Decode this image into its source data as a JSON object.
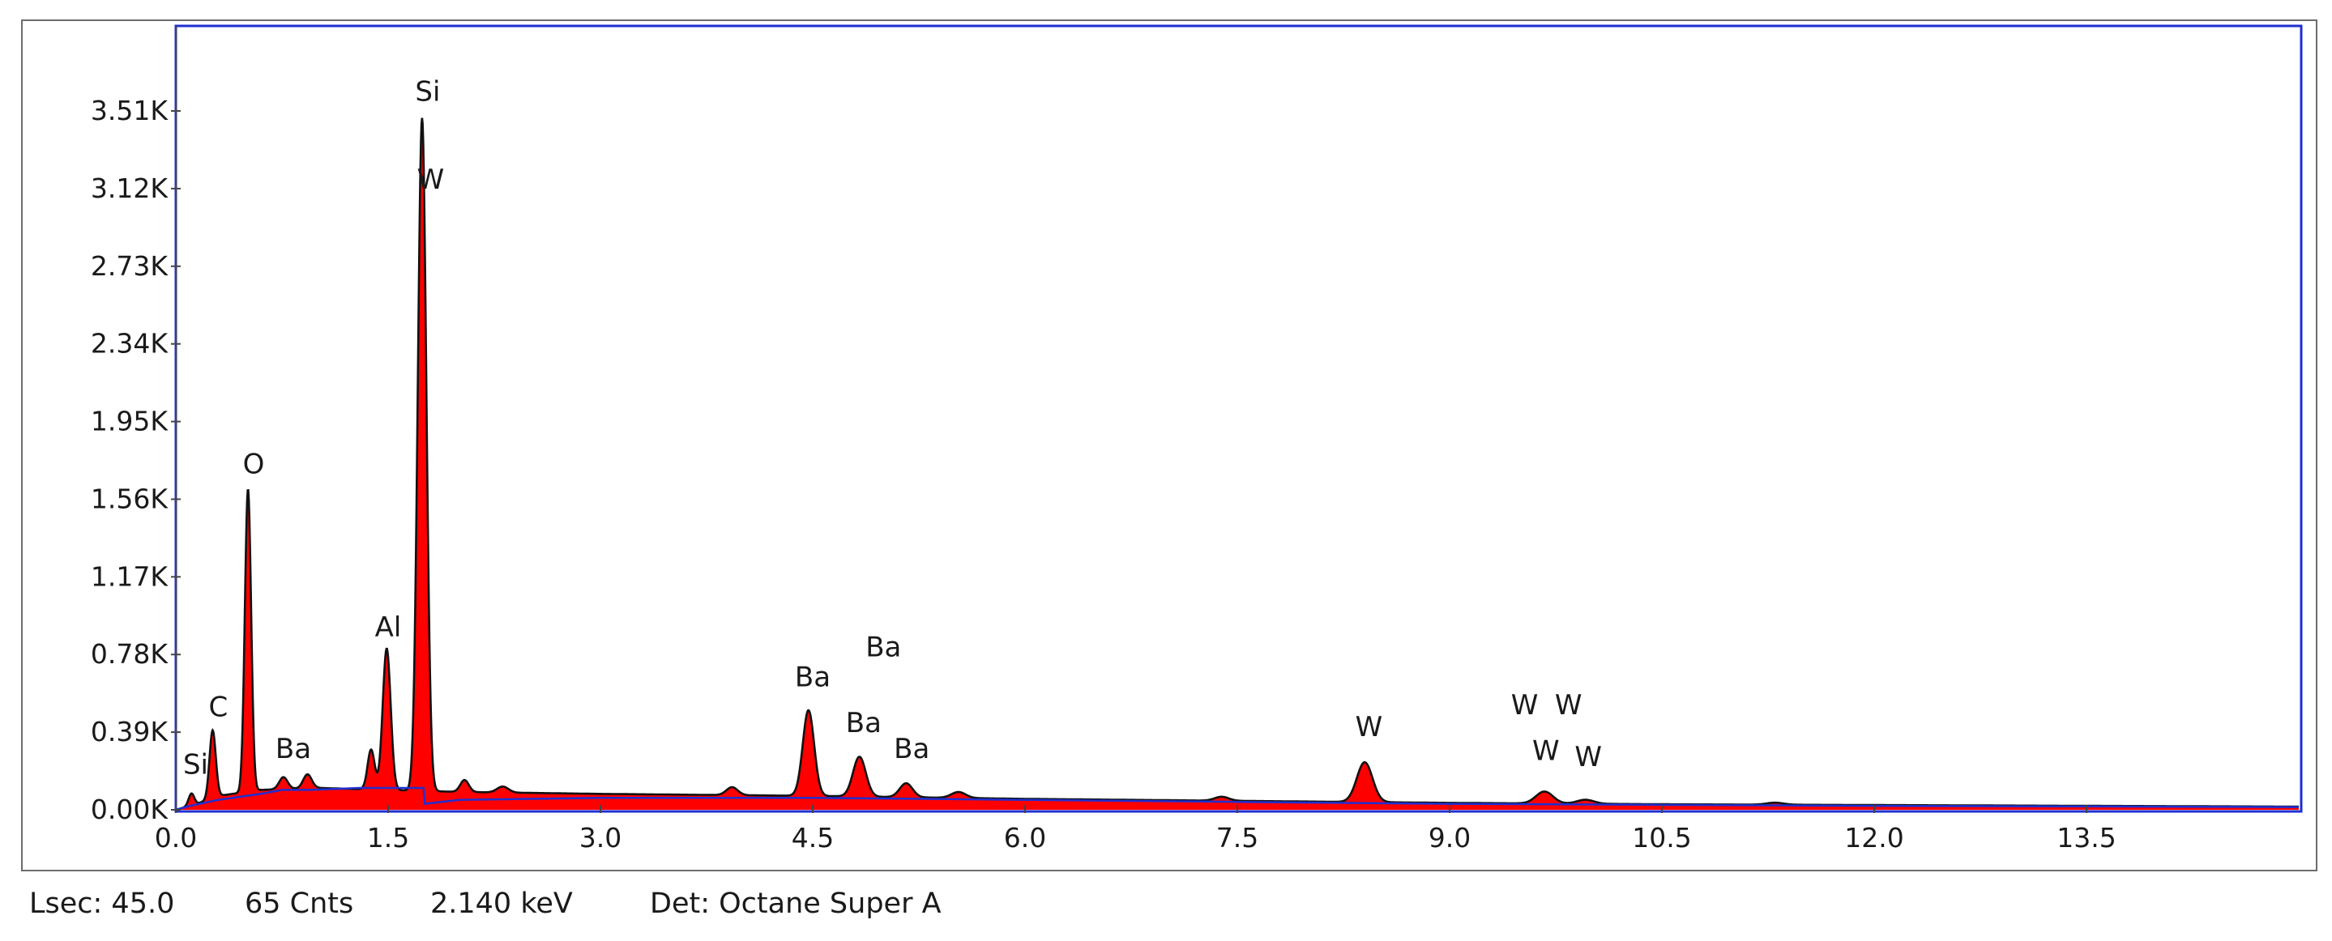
{
  "chart_data": {
    "type": "area",
    "title": "",
    "xlabel": "",
    "ylabel": "",
    "xlim": [
      0.0,
      15.0
    ],
    "ylim": [
      0.0,
      3.9
    ],
    "x_ticks": [
      "0.0",
      "1.5",
      "3.0",
      "4.5",
      "6.0",
      "7.5",
      "9.0",
      "10.5",
      "12.0",
      "13.5"
    ],
    "x_tick_values": [
      0.0,
      1.5,
      3.0,
      4.5,
      6.0,
      7.5,
      9.0,
      10.5,
      12.0,
      13.5
    ],
    "y_ticks": [
      "0.00K",
      "0.39K",
      "0.78K",
      "1.17K",
      "1.56K",
      "1.95K",
      "2.34K",
      "2.73K",
      "3.12K",
      "3.51K"
    ],
    "y_tick_values": [
      0.0,
      0.39,
      0.78,
      1.17,
      1.56,
      1.95,
      2.34,
      2.73,
      3.12,
      3.51
    ],
    "y_unit": "K counts",
    "grid": false,
    "colors": {
      "fill": "#ff0000",
      "outline": "#111111",
      "background_line": "#1f2fd1",
      "frame": "#1f2fd1"
    },
    "series": [
      {
        "peaks": [
          {
            "x": 0.11,
            "y": 0.06,
            "w": 0.02
          },
          {
            "x": 0.26,
            "y": 0.34,
            "w": 0.022
          },
          {
            "x": 0.51,
            "y": 1.52,
            "w": 0.022
          },
          {
            "x": 0.76,
            "y": 0.06,
            "w": 0.03
          },
          {
            "x": 0.93,
            "y": 0.07,
            "w": 0.03
          },
          {
            "x": 1.38,
            "y": 0.2,
            "w": 0.025
          },
          {
            "x": 1.49,
            "y": 0.71,
            "w": 0.028
          },
          {
            "x": 1.74,
            "y": 3.38,
            "w": 0.03
          },
          {
            "x": 2.04,
            "y": 0.06,
            "w": 0.03
          },
          {
            "x": 2.31,
            "y": 0.03,
            "w": 0.04
          },
          {
            "x": 3.93,
            "y": 0.04,
            "w": 0.04
          },
          {
            "x": 4.47,
            "y": 0.43,
            "w": 0.04
          },
          {
            "x": 4.83,
            "y": 0.2,
            "w": 0.045
          },
          {
            "x": 5.16,
            "y": 0.07,
            "w": 0.045
          },
          {
            "x": 5.53,
            "y": 0.03,
            "w": 0.05
          },
          {
            "x": 7.39,
            "y": 0.02,
            "w": 0.05
          },
          {
            "x": 8.4,
            "y": 0.2,
            "w": 0.055
          },
          {
            "x": 9.67,
            "y": 0.06,
            "w": 0.06
          },
          {
            "x": 9.96,
            "y": 0.02,
            "w": 0.06
          },
          {
            "x": 11.3,
            "y": 0.01,
            "w": 0.06
          }
        ],
        "continuum": [
          [
            0.0,
            0.0
          ],
          [
            0.15,
            0.03
          ],
          [
            0.3,
            0.07
          ],
          [
            0.6,
            0.1
          ],
          [
            1.0,
            0.11
          ],
          [
            1.5,
            0.1
          ],
          [
            2.0,
            0.09
          ],
          [
            3.0,
            0.08
          ],
          [
            4.5,
            0.07
          ],
          [
            6.0,
            0.055
          ],
          [
            7.5,
            0.045
          ],
          [
            9.0,
            0.035
          ],
          [
            10.5,
            0.028
          ],
          [
            12.0,
            0.024
          ],
          [
            13.5,
            0.02
          ],
          [
            15.0,
            0.016
          ]
        ]
      }
    ],
    "background_fit": [
      [
        0.0,
        0.0
      ],
      [
        0.1,
        0.02
      ],
      [
        0.3,
        0.05
      ],
      [
        0.6,
        0.08
      ],
      [
        0.75,
        0.1
      ],
      [
        0.95,
        0.1
      ],
      [
        1.3,
        0.11
      ],
      [
        1.75,
        0.11
      ],
      [
        1.76,
        0.03
      ],
      [
        2.0,
        0.05
      ],
      [
        3.0,
        0.06
      ],
      [
        4.5,
        0.06
      ],
      [
        6.0,
        0.05
      ],
      [
        7.5,
        0.04
      ],
      [
        9.0,
        0.03
      ],
      [
        10.5,
        0.025
      ],
      [
        12.0,
        0.02
      ],
      [
        13.5,
        0.017
      ],
      [
        15.0,
        0.014
      ]
    ],
    "peak_labels": [
      {
        "text": "Si",
        "x": 0.14,
        "y": 0.18
      },
      {
        "text": "C",
        "x": 0.3,
        "y": 0.47
      },
      {
        "text": "O",
        "x": 0.55,
        "y": 1.69
      },
      {
        "text": "Ba",
        "x": 0.83,
        "y": 0.26
      },
      {
        "text": "Al",
        "x": 1.5,
        "y": 0.87
      },
      {
        "text": "Si",
        "x": 1.78,
        "y": 3.56
      },
      {
        "text": "W",
        "x": 1.8,
        "y": 3.12
      },
      {
        "text": "Ba",
        "x": 4.5,
        "y": 0.62
      },
      {
        "text": "Ba",
        "x": 5.0,
        "y": 0.77
      },
      {
        "text": "Ba",
        "x": 4.86,
        "y": 0.39
      },
      {
        "text": "Ba",
        "x": 5.2,
        "y": 0.26
      },
      {
        "text": "W",
        "x": 8.43,
        "y": 0.37
      },
      {
        "text": "W",
        "x": 9.53,
        "y": 0.48
      },
      {
        "text": "W",
        "x": 9.84,
        "y": 0.48
      },
      {
        "text": "W",
        "x": 9.68,
        "y": 0.25
      },
      {
        "text": "W",
        "x": 9.98,
        "y": 0.22
      }
    ]
  },
  "status": {
    "lsec": "Lsec: 45.0",
    "counts": "65 Cnts",
    "energy": "2.140 keV",
    "detector": "Det: Octane Super A"
  }
}
